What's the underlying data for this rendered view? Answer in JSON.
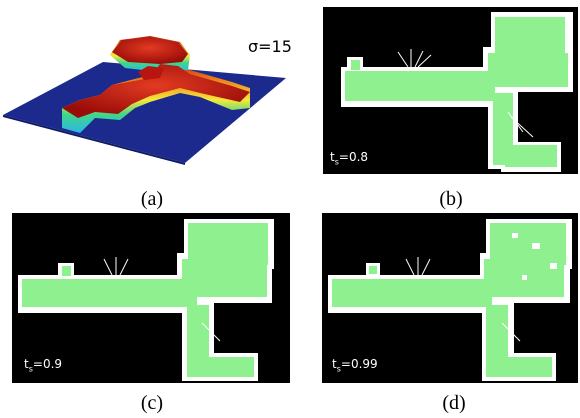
{
  "panels": {
    "a": {
      "caption": "(a)",
      "sigma_label": "σ=15"
    },
    "b": {
      "caption": "(b)",
      "t_var": "t",
      "t_sub": "s",
      "t_value": "=0.8"
    },
    "c": {
      "caption": "(c)",
      "t_var": "t",
      "t_sub": "s",
      "t_value": "=0.9"
    },
    "d": {
      "caption": "(d)",
      "t_var": "t",
      "t_sub": "s",
      "t_value": "=0.99"
    }
  },
  "colors": {
    "background": "#000000",
    "free_space": "#8ff08f",
    "surface_low": "#1b2a8c",
    "surface_high": "#d31a10"
  }
}
